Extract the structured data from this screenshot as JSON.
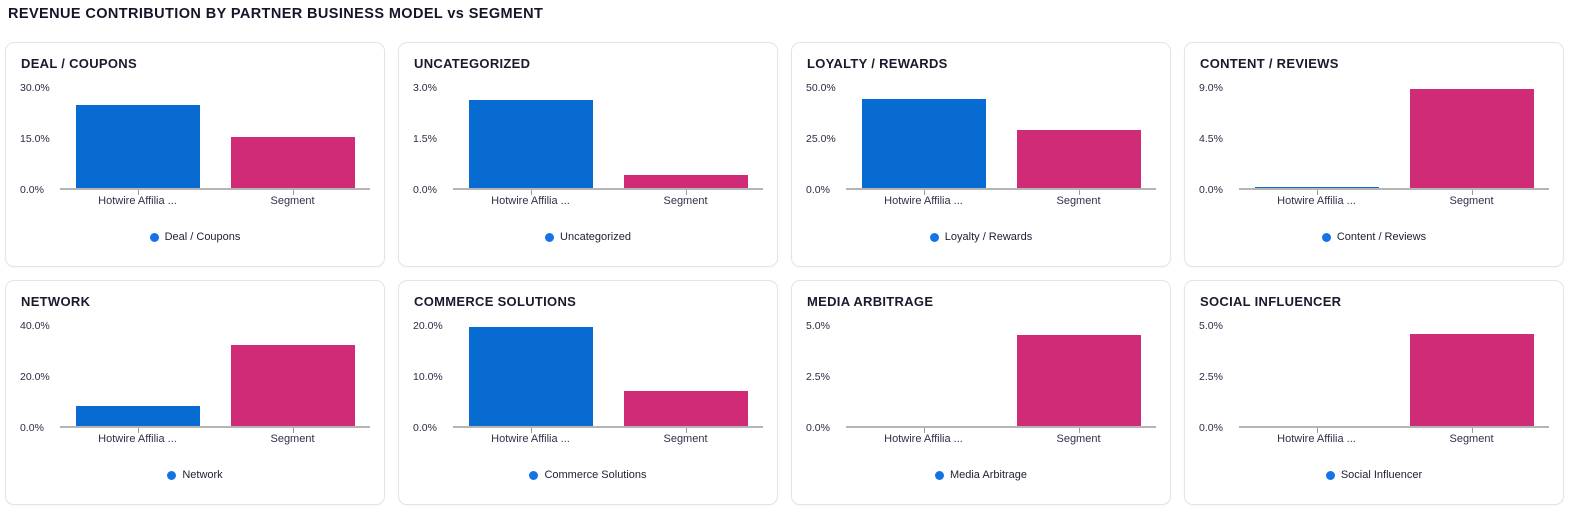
{
  "page": {
    "title": "REVENUE CONTRIBUTION BY PARTNER BUSINESS MODEL vs SEGMENT"
  },
  "colors": {
    "bar_hotwire": "#076bd2",
    "bar_segment": "#d02b76",
    "legend_dot": "#1673e6",
    "axis": "#b5b5b5"
  },
  "chart_data": [
    {
      "type": "bar",
      "title": "DEAL / COUPONS",
      "legend": "Deal / Coupons",
      "categories": [
        "Hotwire Affilia ...",
        "Segment"
      ],
      "values": [
        24.8,
        15.2
      ],
      "yticks": [
        "30.0%",
        "15.0%",
        "0.0%"
      ],
      "ylim": [
        0,
        30
      ],
      "ylabel": "",
      "xlabel": ""
    },
    {
      "type": "bar",
      "title": "UNCATEGORIZED",
      "legend": "Uncategorized",
      "categories": [
        "Hotwire Affilia ...",
        "Segment"
      ],
      "values": [
        2.65,
        0.4
      ],
      "yticks": [
        "3.0%",
        "1.5%",
        "0.0%"
      ],
      "ylim": [
        0,
        3
      ],
      "ylabel": "",
      "xlabel": ""
    },
    {
      "type": "bar",
      "title": "LOYALTY / REWARDS",
      "legend": "Loyalty / Rewards",
      "categories": [
        "Hotwire Affilia ...",
        "Segment"
      ],
      "values": [
        44.5,
        29.0
      ],
      "yticks": [
        "50.0%",
        "25.0%",
        "0.0%"
      ],
      "ylim": [
        0,
        50
      ],
      "ylabel": "",
      "xlabel": ""
    },
    {
      "type": "bar",
      "title": "CONTENT / REVIEWS",
      "legend": "Content / Reviews",
      "categories": [
        "Hotwire Affilia ...",
        "Segment"
      ],
      "values": [
        0.05,
        8.95
      ],
      "yticks": [
        "9.0%",
        "4.5%",
        "0.0%"
      ],
      "ylim": [
        0,
        9
      ],
      "ylabel": "",
      "xlabel": ""
    },
    {
      "type": "bar",
      "title": "NETWORK",
      "legend": "Network",
      "categories": [
        "Hotwire Affilia ...",
        "Segment"
      ],
      "values": [
        7.9,
        32.3
      ],
      "yticks": [
        "40.0%",
        "20.0%",
        "0.0%"
      ],
      "ylim": [
        0,
        40
      ],
      "ylabel": "",
      "xlabel": ""
    },
    {
      "type": "bar",
      "title": "COMMERCE SOLUTIONS",
      "legend": "Commerce Solutions",
      "categories": [
        "Hotwire Affilia ...",
        "Segment"
      ],
      "values": [
        19.8,
        7.1
      ],
      "yticks": [
        "20.0%",
        "10.0%",
        "0.0%"
      ],
      "ylim": [
        0,
        20
      ],
      "ylabel": "",
      "xlabel": ""
    },
    {
      "type": "bar",
      "title": "MEDIA ARBITRAGE",
      "legend": "Media Arbitrage",
      "categories": [
        "Hotwire Affilia ...",
        "Segment"
      ],
      "values": [
        0,
        4.55
      ],
      "yticks": [
        "5.0%",
        "2.5%",
        "0.0%"
      ],
      "ylim": [
        0,
        5
      ],
      "ylabel": "",
      "xlabel": ""
    },
    {
      "type": "bar",
      "title": "SOCIAL INFLUENCER",
      "legend": "Social Influencer",
      "categories": [
        "Hotwire Affilia ...",
        "Segment"
      ],
      "values": [
        0,
        4.6
      ],
      "yticks": [
        "5.0%",
        "2.5%",
        "0.0%"
      ],
      "ylim": [
        0,
        5
      ],
      "ylabel": "",
      "xlabel": ""
    }
  ]
}
